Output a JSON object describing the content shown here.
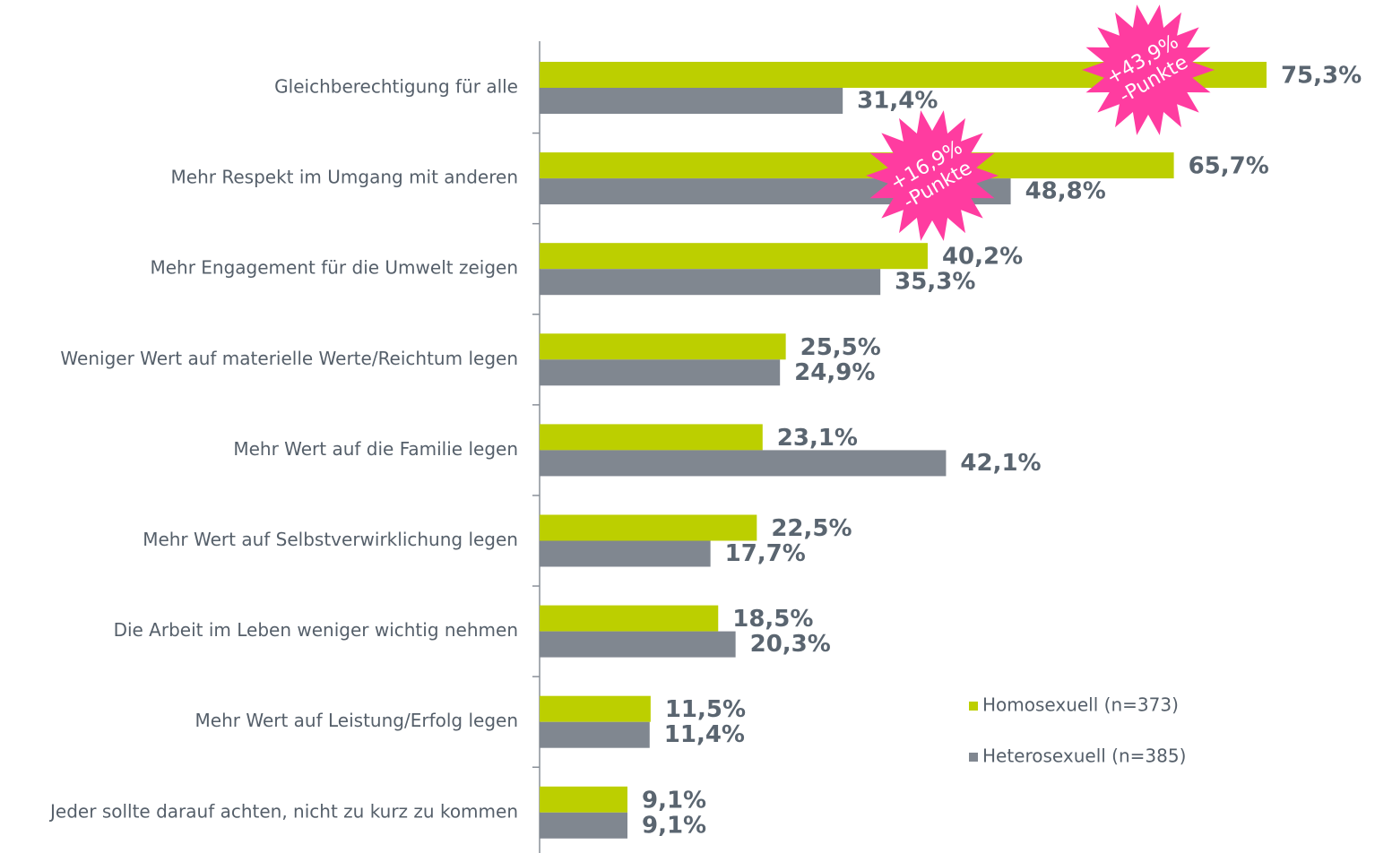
{
  "chart_data": {
    "type": "bar",
    "orientation": "horizontal",
    "categories": [
      "Gleichberechtigung für alle",
      "Mehr Respekt im Umgang mit anderen",
      "Mehr Engagement für die Umwelt zeigen",
      "Weniger Wert auf materielle Werte/Reichtum legen",
      "Mehr Wert auf die Familie legen",
      "Mehr Wert auf Selbstverwirklichung legen",
      "Die Arbeit im Leben weniger wichtig nehmen",
      "Mehr Wert auf Leistung/Erfolg legen",
      "Jeder sollte darauf achten, nicht zu kurz zu kommen"
    ],
    "series": [
      {
        "name": "Homosexuell (n=373)",
        "color": "#bccf00",
        "values": [
          75.3,
          65.7,
          40.2,
          25.5,
          23.1,
          22.5,
          18.5,
          11.5,
          9.1
        ],
        "value_labels": [
          "75,3%",
          "65,7%",
          "40,2%",
          "25,5%",
          "23,1%",
          "22,5%",
          "18,5%",
          "11,5%",
          "9,1%"
        ]
      },
      {
        "name": "Heterosexuell (n=385)",
        "color": "#808790",
        "values": [
          31.4,
          48.8,
          35.3,
          24.9,
          42.1,
          17.7,
          20.3,
          11.4,
          9.1
        ],
        "value_labels": [
          "31,4%",
          "48,8%",
          "35,3%",
          "24,9%",
          "42,1%",
          "17,7%",
          "20,3%",
          "11,4%",
          "9,1%"
        ]
      }
    ],
    "xlim": [
      0,
      100
    ],
    "annotations": [
      {
        "category": 0,
        "lines": [
          "+43,9%",
          "-Punkte"
        ],
        "color": "#ff3ca0"
      },
      {
        "category": 1,
        "lines": [
          "+16,9%",
          "-Punkte"
        ],
        "color": "#ff3ca0"
      }
    ],
    "legend": "lower right"
  }
}
